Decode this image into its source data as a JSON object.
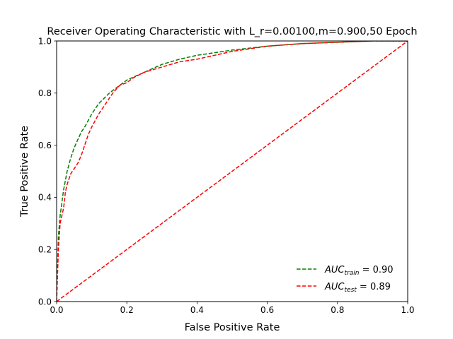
{
  "chart_data": {
    "type": "line",
    "title": "Receiver Operating Characteristic with L_r=0.00100,m=0.900,50 Epoch",
    "xlabel": "False Positive Rate",
    "ylabel": "True Positive Rate",
    "xlim": [
      0,
      1
    ],
    "ylim": [
      0,
      1
    ],
    "xticks": [
      "0.0",
      "0.2",
      "0.4",
      "0.6",
      "0.8",
      "1.0"
    ],
    "yticks": [
      "0.0",
      "0.2",
      "0.4",
      "0.6",
      "0.8",
      "1.0"
    ],
    "grid": false,
    "legend_position": "lower-right",
    "series": [
      {
        "name": "AUC_train = 0.90",
        "legend_main": "AUC",
        "legend_sub": "train",
        "legend_value": " = 0.90",
        "color": "#008000",
        "style": "dashed",
        "x": [
          0,
          0.005,
          0.01,
          0.02,
          0.03,
          0.04,
          0.05,
          0.06,
          0.07,
          0.08,
          0.1,
          0.12,
          0.15,
          0.18,
          0.2,
          0.25,
          0.3,
          0.35,
          0.4,
          0.45,
          0.5,
          0.6,
          0.7,
          0.8,
          0.9,
          1.0
        ],
        "y": [
          0,
          0.25,
          0.33,
          0.43,
          0.5,
          0.55,
          0.59,
          0.62,
          0.65,
          0.67,
          0.72,
          0.76,
          0.8,
          0.83,
          0.85,
          0.88,
          0.91,
          0.93,
          0.945,
          0.955,
          0.965,
          0.98,
          0.99,
          0.995,
          1.0,
          1.0
        ]
      },
      {
        "name": "AUC_test = 0.89",
        "legend_main": "AUC",
        "legend_sub": "test",
        "legend_value": " = 0.89",
        "color": "#ff0000",
        "style": "dashed",
        "x": [
          0,
          0.005,
          0.01,
          0.02,
          0.025,
          0.03,
          0.04,
          0.05,
          0.06,
          0.07,
          0.08,
          0.09,
          0.1,
          0.12,
          0.14,
          0.16,
          0.18,
          0.2,
          0.22,
          0.25,
          0.3,
          0.35,
          0.4,
          0.45,
          0.5,
          0.6,
          0.7,
          0.8,
          0.9,
          1.0
        ],
        "y": [
          0,
          0.2,
          0.3,
          0.36,
          0.42,
          0.45,
          0.49,
          0.51,
          0.53,
          0.56,
          0.6,
          0.64,
          0.67,
          0.72,
          0.76,
          0.8,
          0.83,
          0.84,
          0.86,
          0.88,
          0.9,
          0.92,
          0.93,
          0.945,
          0.96,
          0.98,
          0.99,
          0.995,
          1.0,
          1.0
        ]
      },
      {
        "name": "",
        "color": "#ff0000",
        "style": "dashed",
        "x": [
          0,
          1
        ],
        "y": [
          0,
          1
        ]
      }
    ]
  }
}
